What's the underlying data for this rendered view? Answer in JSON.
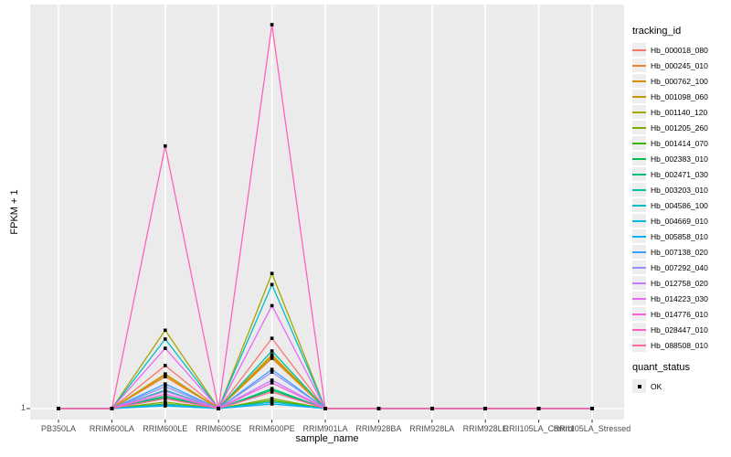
{
  "axes": {
    "x_title": "sample_name",
    "y_title": "FPKM + 1",
    "y_tick_label": "1"
  },
  "panel": {
    "background": "#EBEBEB",
    "gridline_color": "#FFFFFF",
    "tick_color": "#333333",
    "point_color": "#000000"
  },
  "legend": {
    "tracking_title": "tracking_id",
    "quant_title": "quant_status",
    "quant_items": [
      {
        "label": "OK",
        "marker": "black-square"
      }
    ]
  },
  "chart_data": {
    "type": "line",
    "title": "",
    "xlabel": "sample_name",
    "ylabel": "FPKM + 1",
    "x_categories": [
      "PB350LA",
      "RRIM600LA",
      "RRIM600LE",
      "RRIM600SE",
      "RRIM600PE",
      "RRIM901LA",
      "RRIM928BA",
      "RRIM928LA",
      "RRIM928LE",
      "RRII105LA_Control",
      "RRII105LA_Stressed"
    ],
    "y_tick_labels": [
      "1"
    ],
    "baseline_value": 1,
    "grid": "ggplot2-style gray panel with white gridlines",
    "legend_position": "right",
    "marker": "black square at every sample point (quant_status = OK)",
    "values_note": "Axis shows only the tick '1' (baseline, FPKM+1=1). rel_values are peak heights estimated from pixels as a fraction of the tallest spike (Hb_028447_010 at RRIM600PE). All samples other than RRIM600LE and RRIM600PE sit on the baseline.",
    "series": [
      {
        "name": "Hb_000018_080",
        "color": "#F8766D",
        "rel_values": [
          0,
          0,
          0.112,
          0,
          0.183,
          0,
          0,
          0,
          0,
          0,
          0
        ]
      },
      {
        "name": "Hb_000245_010",
        "color": "#EA8331",
        "rel_values": [
          0,
          0,
          0.083,
          0,
          0.131,
          0,
          0,
          0,
          0,
          0,
          0
        ]
      },
      {
        "name": "Hb_000762_100",
        "color": "#D89000",
        "rel_values": [
          0,
          0,
          0.088,
          0,
          0.14,
          0,
          0,
          0,
          0,
          0,
          0
        ]
      },
      {
        "name": "Hb_001098_060",
        "color": "#C09B00",
        "rel_values": [
          0,
          0,
          0.09,
          0,
          0.135,
          0,
          0,
          0,
          0,
          0,
          0
        ]
      },
      {
        "name": "Hb_001140_120",
        "color": "#A3A500",
        "rel_values": [
          0,
          0,
          0.204,
          0,
          0.352,
          0,
          0,
          0,
          0,
          0,
          0
        ]
      },
      {
        "name": "Hb_001205_260",
        "color": "#7CAE00",
        "rel_values": [
          0,
          0,
          0.017,
          0,
          0.026,
          0,
          0,
          0,
          0,
          0,
          0
        ]
      },
      {
        "name": "Hb_001414_070",
        "color": "#39B600",
        "rel_values": [
          0,
          0,
          0.012,
          0,
          0.021,
          0,
          0,
          0,
          0,
          0,
          0
        ]
      },
      {
        "name": "Hb_002383_010",
        "color": "#00BB4E",
        "rel_values": [
          0,
          0,
          0.029,
          0,
          0.048,
          0,
          0,
          0,
          0,
          0,
          0
        ]
      },
      {
        "name": "Hb_002471_030",
        "color": "#00BF7D",
        "rel_values": [
          0,
          0,
          0.033,
          0,
          0.052,
          0,
          0,
          0,
          0,
          0,
          0
        ]
      },
      {
        "name": "Hb_003203_010",
        "color": "#00C1A3",
        "rel_values": [
          0,
          0,
          0.048,
          0,
          0.15,
          0,
          0,
          0,
          0,
          0,
          0
        ]
      },
      {
        "name": "Hb_004586_100",
        "color": "#00BFC4",
        "rel_values": [
          0,
          0,
          0.181,
          0,
          0.323,
          0,
          0,
          0,
          0,
          0,
          0
        ]
      },
      {
        "name": "Hb_004669_010",
        "color": "#00BAE0",
        "rel_values": [
          0,
          0,
          0.01,
          0,
          0.017,
          0,
          0,
          0,
          0,
          0,
          0
        ]
      },
      {
        "name": "Hb_005858_010",
        "color": "#00B0F6",
        "rel_values": [
          0,
          0,
          0.007,
          0,
          0.012,
          0,
          0,
          0,
          0,
          0,
          0
        ]
      },
      {
        "name": "Hb_007138_020",
        "color": "#35A2FF",
        "rel_values": [
          0,
          0,
          0.064,
          0,
          0.102,
          0,
          0,
          0,
          0,
          0,
          0
        ]
      },
      {
        "name": "Hb_007292_040",
        "color": "#9590FF",
        "rel_values": [
          0,
          0,
          0.057,
          0,
          0.095,
          0,
          0,
          0,
          0,
          0,
          0
        ]
      },
      {
        "name": "Hb_012758_020",
        "color": "#C77CFF",
        "rel_values": [
          0,
          0,
          0.045,
          0,
          0.074,
          0,
          0,
          0,
          0,
          0,
          0
        ]
      },
      {
        "name": "Hb_014223_030",
        "color": "#E76BF3",
        "rel_values": [
          0,
          0,
          0.157,
          0,
          0.268,
          0,
          0,
          0,
          0,
          0,
          0
        ]
      },
      {
        "name": "Hb_014776_010",
        "color": "#FA62DB",
        "rel_values": [
          0,
          0,
          0.038,
          0,
          0.067,
          0,
          0,
          0,
          0,
          0,
          0
        ]
      },
      {
        "name": "Hb_028447_010",
        "color": "#FF62BC",
        "rel_values": [
          0,
          0,
          0.684,
          0,
          1.0,
          0,
          0,
          0,
          0,
          0,
          0
        ]
      },
      {
        "name": "Hb_088508_010",
        "color": "#FF6A98",
        "rel_values": [
          0,
          0,
          0.026,
          0,
          0.043,
          0,
          0,
          0,
          0,
          0,
          0
        ]
      }
    ]
  }
}
